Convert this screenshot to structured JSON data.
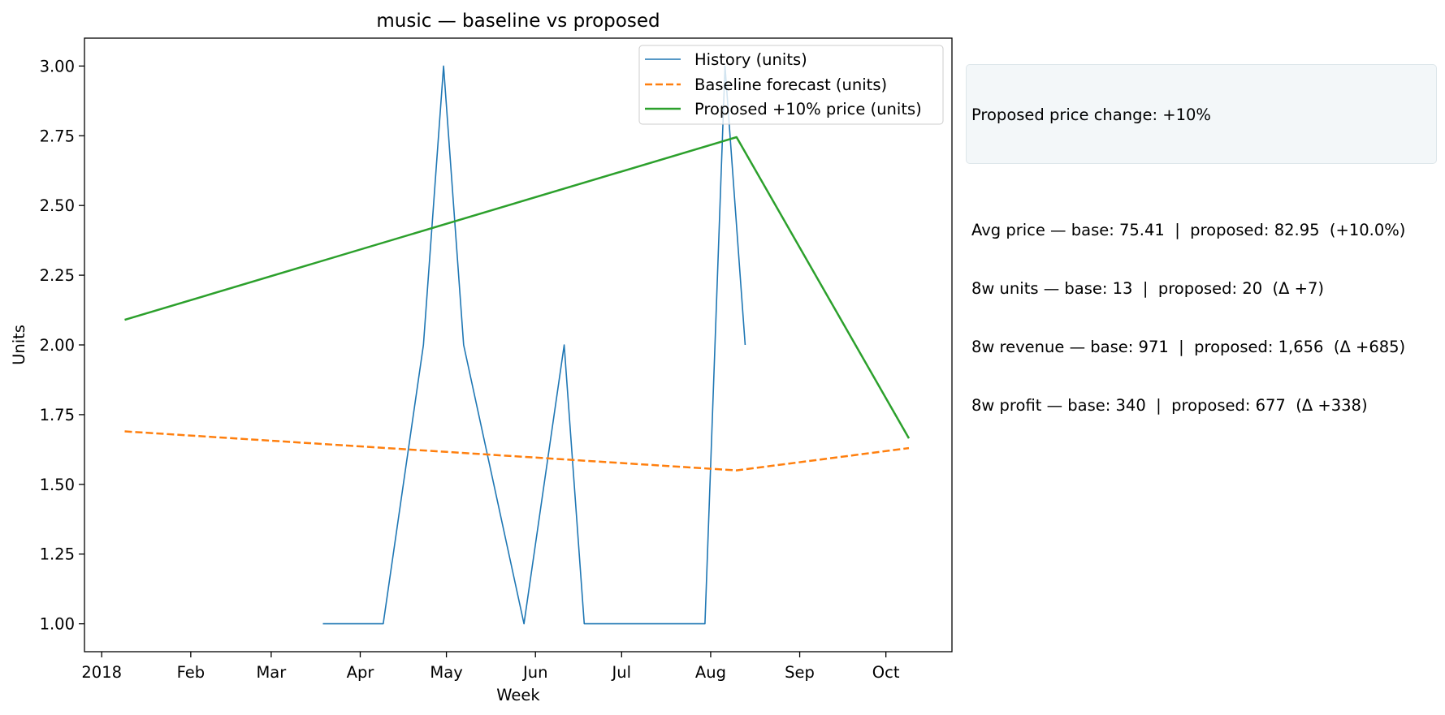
{
  "chart_data": {
    "type": "line",
    "title": "music — baseline vs proposed",
    "xlabel": "Week",
    "ylabel": "Units",
    "xlim": [
      "2017-12-26",
      "2018-10-24"
    ],
    "ylim": [
      0.9,
      3.1
    ],
    "x_ticks": [
      {
        "date": "2018-01-01",
        "label": "2018"
      },
      {
        "date": "2018-02-01",
        "label": "Feb"
      },
      {
        "date": "2018-03-01",
        "label": "Mar"
      },
      {
        "date": "2018-04-01",
        "label": "Apr"
      },
      {
        "date": "2018-05-01",
        "label": "May"
      },
      {
        "date": "2018-06-01",
        "label": "Jun"
      },
      {
        "date": "2018-07-01",
        "label": "Jul"
      },
      {
        "date": "2018-08-01",
        "label": "Aug"
      },
      {
        "date": "2018-09-01",
        "label": "Sep"
      },
      {
        "date": "2018-10-01",
        "label": "Oct"
      }
    ],
    "y_ticks": [
      1.0,
      1.25,
      1.5,
      1.75,
      2.0,
      2.25,
      2.5,
      2.75,
      3.0
    ],
    "y_tick_labels": [
      "1.00",
      "1.25",
      "1.50",
      "1.75",
      "2.00",
      "2.25",
      "2.50",
      "2.75",
      "3.00"
    ],
    "grid": false,
    "legend": "top-right",
    "series": [
      {
        "name": "History (units)",
        "color": "#1f77b4",
        "style": "solid",
        "points": [
          {
            "x": "2018-03-19",
            "y": 1
          },
          {
            "x": "2018-04-09",
            "y": 1
          },
          {
            "x": "2018-04-23",
            "y": 2
          },
          {
            "x": "2018-04-30",
            "y": 3
          },
          {
            "x": "2018-05-07",
            "y": 2
          },
          {
            "x": "2018-05-28",
            "y": 1
          },
          {
            "x": "2018-06-11",
            "y": 2
          },
          {
            "x": "2018-06-18",
            "y": 1
          },
          {
            "x": "2018-07-30",
            "y": 1
          },
          {
            "x": "2018-08-06",
            "y": 3
          },
          {
            "x": "2018-08-13",
            "y": 2
          }
        ]
      },
      {
        "name": "Baseline forecast (units)",
        "color": "#ff7f0e",
        "style": "dashed",
        "points": [
          {
            "x": "2018-01-09",
            "y": 1.69
          },
          {
            "x": "2018-08-10",
            "y": 1.55
          },
          {
            "x": "2018-10-09",
            "y": 1.63
          }
        ]
      },
      {
        "name": "Proposed +10% price (units)",
        "color": "#2ca02c",
        "style": "solid",
        "points": [
          {
            "x": "2018-01-09",
            "y": 2.09
          },
          {
            "x": "2018-08-10",
            "y": 2.745
          },
          {
            "x": "2018-10-09",
            "y": 1.665
          }
        ]
      }
    ]
  },
  "info_box": {
    "headline": "Proposed price change: +10%",
    "avg_price": "Avg price — base: 75.41  |  proposed: 82.95  (+10.0%)",
    "units_8w": "8w units — base: 13  |  proposed: 20  (Δ +7)",
    "revenue_8w": "8w revenue — base: 971  |  proposed: 1,656  (Δ +685)",
    "profit_8w": "8w profit — base: 340  |  proposed: 677  (Δ +338)"
  }
}
